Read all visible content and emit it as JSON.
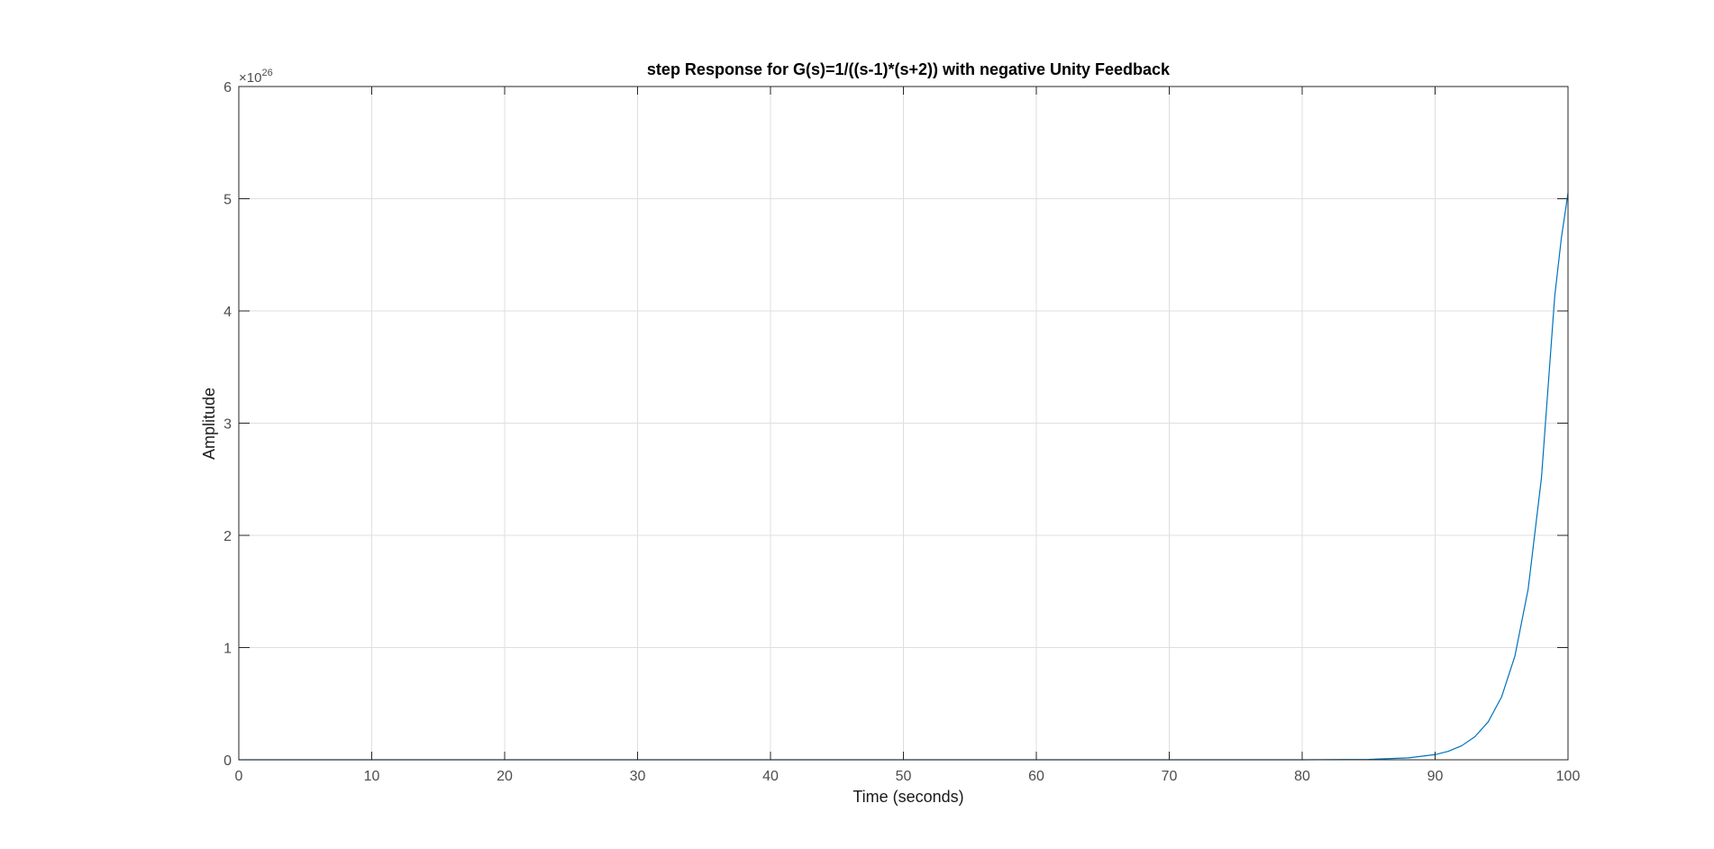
{
  "chart_data": {
    "type": "line",
    "title": "step Response for G(s)=1/((s-1)*(s+2)) with negative Unity Feedback",
    "xlabel": "Time (seconds)",
    "ylabel": "Amplitude",
    "xlim": [
      0,
      100
    ],
    "ylim": [
      0,
      6e+26
    ],
    "y_exponent_label": {
      "base": "×10",
      "power": "26"
    },
    "x_ticks": [
      "0",
      "10",
      "20",
      "30",
      "40",
      "50",
      "60",
      "70",
      "80",
      "90",
      "100"
    ],
    "y_ticks": [
      "0",
      "1",
      "2",
      "3",
      "4",
      "5",
      "6"
    ],
    "grid": true,
    "legend": "none",
    "series": [
      {
        "color": "#0072BD",
        "x": [
          0,
          10,
          20,
          30,
          40,
          50,
          60,
          70,
          80,
          85,
          88,
          90,
          91,
          92,
          93,
          94,
          95,
          96,
          97,
          98,
          99,
          99.5,
          100
        ],
        "y": [
          0,
          0,
          0,
          0,
          0,
          0,
          0,
          0,
          2.3e+22,
          3.4e+23,
          1.7e+24,
          4.6e+24,
          7.6e+24,
          1.25e+25,
          2.06e+25,
          3.39e+25,
          5.59e+25,
          9.22e+25,
          1.52e+26,
          2.51e+26,
          4.13e+26,
          4.65e+26,
          5.05e+26
        ]
      }
    ]
  }
}
